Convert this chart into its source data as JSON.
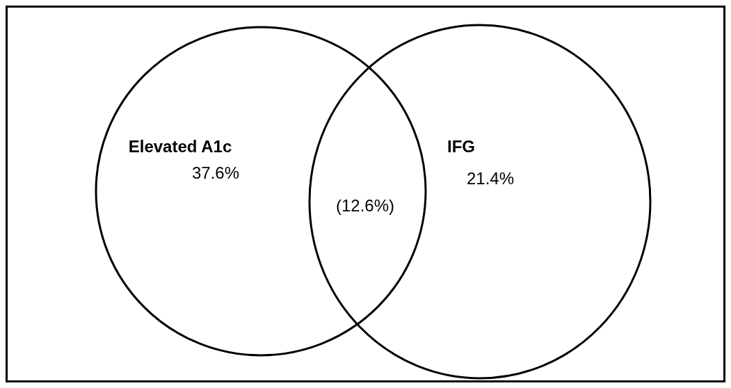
{
  "chart_data": {
    "type": "other",
    "categories": [
      "Elevated A1c",
      "IFG",
      null
    ],
    "values": [
      37.6,
      21.4,
      12.6
    ],
    "value_labels": [
      "37.6%",
      "21.4%",
      "(12.6%)"
    ]
  }
}
